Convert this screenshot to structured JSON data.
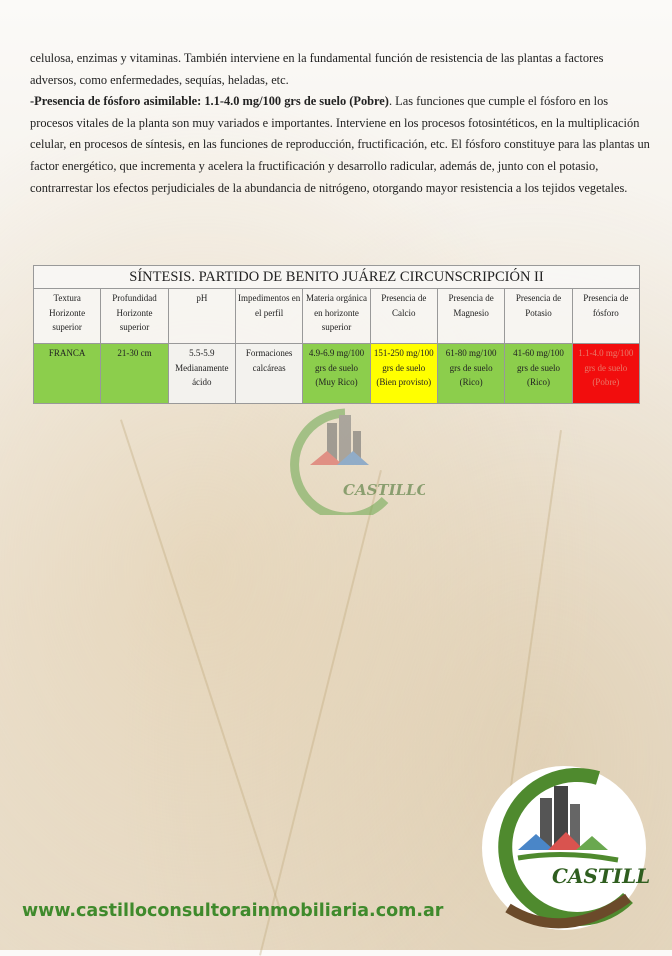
{
  "body_text": {
    "line_intro": "celulosa, enzimas y vitaminas. También interviene en la fundamental función  de resistencia de las plantas a factores adversos, como enfermedades, sequías, heladas, etc.",
    "phosphorus_heading": "-Presencia de fósforo asimilable: 1.1-4.0 mg/100 grs de suelo (Pobre)",
    "phosphorus_text": ". Las funciones que cumple el fósforo en los procesos vitales de la planta son muy variados e importantes. Interviene en los procesos fotosintéticos, en la multiplicación celular, en procesos de síntesis, en las funciones de reproducción, fructificación, etc. El fósforo constituye para las plantas un factor energético, que incrementa y acelera la fructificación y desarrollo radicular, además de, junto con el potasio, contrarrestar los efectos perjudiciales de la abundancia de nitrógeno, otorgando mayor resistencia a los tejidos vegetales."
  },
  "table": {
    "title": "SÍNTESIS. PARTIDO DE BENITO JUÁREZ CIRCUNSCRIPCIÓN II",
    "headers": [
      "Textura Horizonte superior",
      "Profundidad Horizonte superior",
      "pH",
      "Impedimentos en el perfil",
      "Materia orgánica en horizonte superior",
      "Presencia de Calcio",
      "Presencia de Magnesio",
      "Presencia de Potasio",
      "Presencia de fósforo"
    ],
    "row": [
      "FRANCA",
      "21-30 cm",
      "5.5-5.9 Medianamente ácido",
      "Formaciones calcáreas",
      "4.9-6.9 mg/100 grs de suelo (Muy Rico)",
      "151-250 mg/100 grs de suelo (Bien provisto)",
      "61-80 mg/100 grs de suelo (Rico)",
      "41-60 mg/100 grs de suelo (Rico)",
      "1.1-4.0 mg/100 grs de suelo (Pobre)"
    ],
    "row_colors": [
      "#8cce4c",
      "#8cce4c",
      "#f3f2ee",
      "#f3f2ee",
      "#8cce4c",
      "#ffff00",
      "#8cce4c",
      "#8cce4c",
      "#f20d0d"
    ]
  },
  "logo": {
    "text": "CASTILLO"
  },
  "footer": {
    "url": "www.castilloconsultorainmobiliaria.com.ar"
  }
}
